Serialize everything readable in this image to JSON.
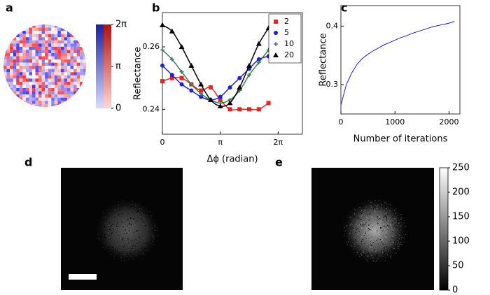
{
  "panel_labels": [
    "a",
    "b",
    "c",
    "d",
    "e"
  ],
  "chart_data": [
    {
      "type": "line",
      "xlabel": "Δϕ (radian)",
      "ylabel": "Reflectance",
      "legend": "upper right",
      "xlim": [
        0,
        7.6
      ],
      "xticks": [
        0,
        {
          "value": 3.14159,
          "label": "π"
        },
        {
          "value": 6.28319,
          "label": "2π"
        }
      ],
      "ylim": [
        0.232,
        0.271
      ],
      "yticks": [
        0.24,
        0.26
      ],
      "x": [
        0,
        0.524,
        1.047,
        1.571,
        2.094,
        2.618,
        3.142,
        3.665,
        4.189,
        4.712,
        5.236,
        5.76
      ],
      "series": [
        {
          "name": "2",
          "color": "#e8231e",
          "marker": "square",
          "values": [
            0.249,
            0.25,
            0.25,
            0.248,
            0.246,
            0.247,
            0.243,
            0.24,
            0.24,
            0.24,
            0.24,
            0.242
          ]
        },
        {
          "name": "5",
          "color": "#1f1fd6",
          "marker": "circle",
          "values": [
            0.254,
            0.251,
            0.248,
            0.246,
            0.244,
            0.243,
            0.244,
            0.247,
            0.25,
            0.253,
            0.256,
            0.257
          ]
        },
        {
          "name": "10",
          "color": "#3c7a5a",
          "marker": "plus",
          "values": [
            0.259,
            0.256,
            0.252,
            0.248,
            0.245,
            0.243,
            0.242,
            0.243,
            0.246,
            0.251,
            0.255,
            0.259
          ]
        },
        {
          "name": "20",
          "color": "#000000",
          "marker": "triangle",
          "values": [
            0.267,
            0.265,
            0.26,
            0.254,
            0.248,
            0.243,
            0.241,
            0.242,
            0.247,
            0.254,
            0.261,
            0.266
          ]
        }
      ]
    },
    {
      "type": "line",
      "xlabel": "Number of iterations",
      "ylabel": "Reflectance",
      "xlim": [
        0,
        2200
      ],
      "xticks": [
        0,
        1000,
        2000
      ],
      "ylim": [
        0.25,
        0.435
      ],
      "yticks": [
        0.3,
        0.4
      ],
      "x": [
        0,
        100,
        200,
        300,
        400,
        500,
        600,
        700,
        800,
        900,
        1000,
        1100,
        1200,
        1300,
        1400,
        1500,
        1600,
        1700,
        1800,
        1900,
        2000,
        2100
      ],
      "series": [
        {
          "color": "#1f1fd6",
          "values": [
            0.265,
            0.3,
            0.32,
            0.335,
            0.345,
            0.352,
            0.358,
            0.363,
            0.368,
            0.372,
            0.376,
            0.38,
            0.383,
            0.387,
            0.39,
            0.393,
            0.396,
            0.399,
            0.401,
            0.403,
            0.405,
            0.408
          ]
        }
      ]
    }
  ],
  "colorbar_a": {
    "lim": [
      0,
      6.28319
    ],
    "ticks": [
      0,
      {
        "value": 3.14159,
        "label": "π"
      },
      {
        "value": 6.28319,
        "label": "2π"
      }
    ]
  },
  "colorbar_e": {
    "lim": [
      0,
      250
    ],
    "ticks": [
      0,
      50,
      100,
      150,
      200,
      250
    ]
  }
}
